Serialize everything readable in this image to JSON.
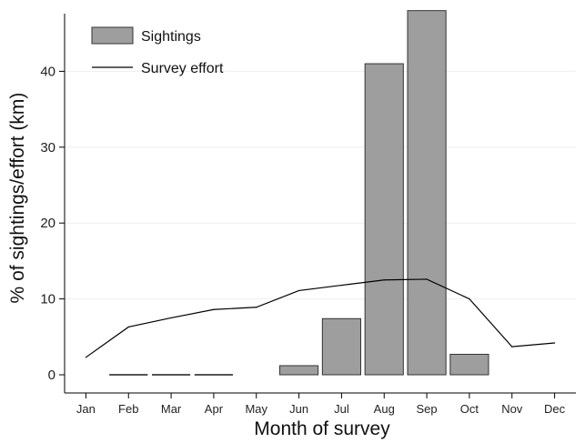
{
  "chart_data": {
    "type": "bar",
    "xlabel": "Month of survey",
    "ylabel": "% of sightings/effort (km)",
    "ylim": [
      0,
      50
    ],
    "yticks": [
      0,
      10,
      20,
      30,
      40,
      50
    ],
    "grid": true,
    "legend_position": "top-left",
    "categories": [
      "Jan",
      "Feb",
      "Mar",
      "Apr",
      "May",
      "Jun",
      "Jul",
      "Aug",
      "Sep",
      "Oct",
      "Nov",
      "Dec"
    ],
    "series": [
      {
        "name": "Sightings",
        "kind": "bar",
        "color": "#9e9e9e",
        "values": [
          null,
          0,
          0,
          0,
          null,
          1.2,
          7.4,
          41,
          48,
          2.7,
          null,
          null
        ]
      },
      {
        "name": "Survey effort",
        "kind": "line",
        "color": "#000000",
        "values": [
          2.3,
          6.3,
          7.5,
          8.6,
          8.9,
          11.1,
          11.8,
          12.5,
          12.6,
          10.0,
          3.7,
          4.2
        ]
      }
    ]
  }
}
